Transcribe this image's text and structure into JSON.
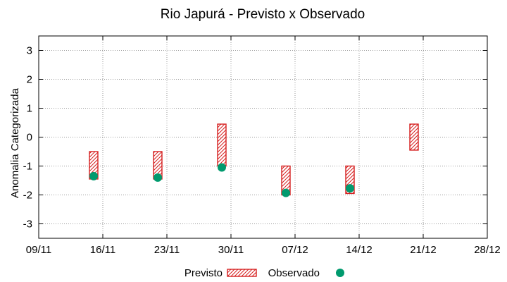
{
  "chart_data": {
    "type": "range-bar-scatter",
    "title": "Rio Japurá - Previsto x Observado",
    "xlabel": "",
    "ylabel": "Anomalia Categorizada",
    "ylim": [
      -3.5,
      3.5
    ],
    "yticks": [
      -3,
      -2,
      -1,
      0,
      1,
      2,
      3
    ],
    "xlim_days": [
      0,
      49
    ],
    "xticks": [
      {
        "day": 0,
        "label": "09/11"
      },
      {
        "day": 7,
        "label": "16/11"
      },
      {
        "day": 14,
        "label": "23/11"
      },
      {
        "day": 21,
        "label": "30/11"
      },
      {
        "day": 28,
        "label": "07/12"
      },
      {
        "day": 35,
        "label": "14/12"
      },
      {
        "day": 42,
        "label": "21/12"
      },
      {
        "day": 49,
        "label": "28/12"
      }
    ],
    "grid": true,
    "legend_position": "bottom-center",
    "series": [
      {
        "name": "Previsto",
        "kind": "range",
        "color": "#d62020",
        "points": [
          {
            "day": 6,
            "low": -1.45,
            "high": -0.5
          },
          {
            "day": 13,
            "low": -1.45,
            "high": -0.5
          },
          {
            "day": 20,
            "low": -1.0,
            "high": 0.45
          },
          {
            "day": 27,
            "low": -2.0,
            "high": -1.0
          },
          {
            "day": 34,
            "low": -1.95,
            "high": -1.0
          },
          {
            "day": 41,
            "low": -0.45,
            "high": 0.45
          }
        ]
      },
      {
        "name": "Observado",
        "kind": "scatter",
        "color": "#009a6e",
        "points": [
          {
            "day": 6,
            "value": -1.35
          },
          {
            "day": 13,
            "value": -1.4
          },
          {
            "day": 20,
            "value": -1.05
          },
          {
            "day": 27,
            "value": -1.93
          },
          {
            "day": 34,
            "value": -1.77
          }
        ]
      }
    ]
  }
}
